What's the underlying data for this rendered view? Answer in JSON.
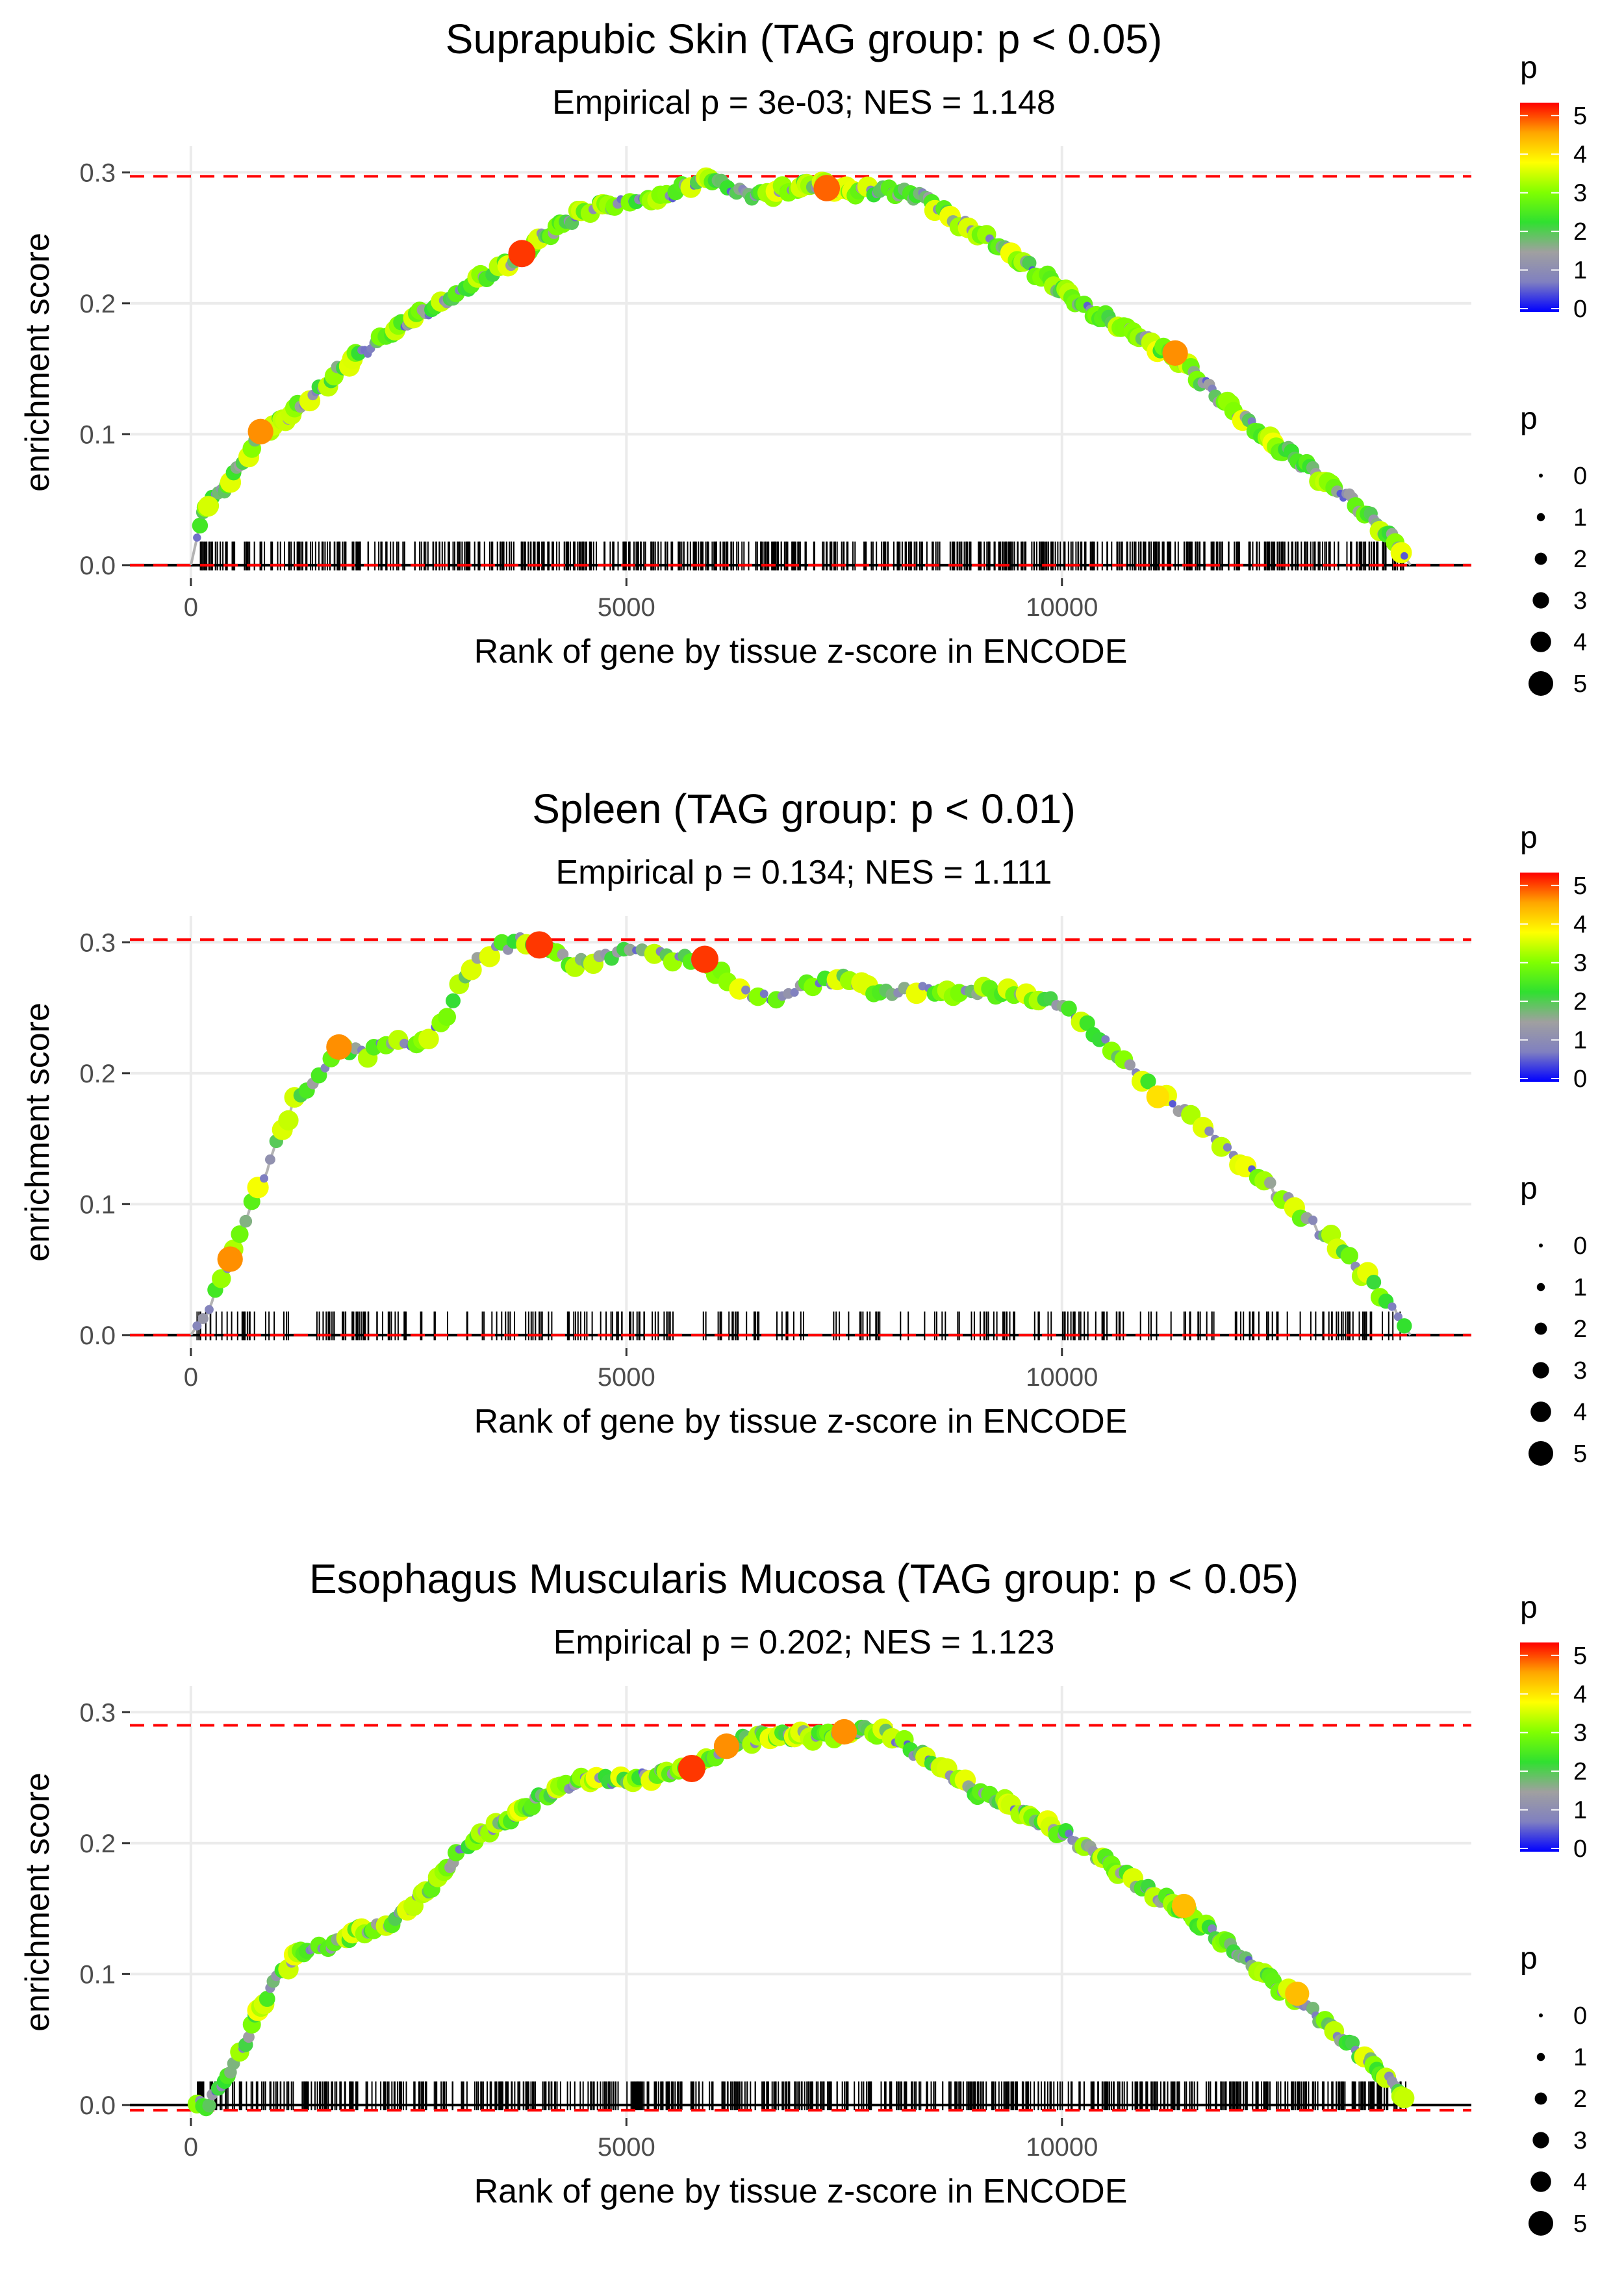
{
  "colors": {
    "grid": "#ebebeb",
    "dashed_line": "#ff0000",
    "curve": "#b3b3b3",
    "axis_text": "#4d4d4d",
    "gradient": [
      "#0000ff",
      "#8080c0",
      "#a0a0a0",
      "#30e030",
      "#80ff00",
      "#ffff00",
      "#ffa500",
      "#ff0000"
    ]
  },
  "chart_data": [
    {
      "type": "line",
      "title": "Suprapubic Skin (TAG group: p < 0.05)",
      "subtitle": "Empirical p = 3e-03; NES = 1.148",
      "xlabel": "Rank of gene by tissue z-score in ENCODE",
      "ylabel": "enrichment score",
      "xlim": [
        -700,
        14700
      ],
      "ylim": [
        -0.01,
        0.32
      ],
      "x_ticks": [
        0,
        5000,
        10000
      ],
      "x_tick_labels": [
        "0",
        "5000",
        "10000"
      ],
      "y_ticks": [
        0.0,
        0.1,
        0.2,
        0.3
      ],
      "y_tick_labels": [
        "0.0",
        "0.1",
        "0.2",
        "0.3"
      ],
      "max_es": 0.297,
      "min_es": 0.0,
      "series_curve": {
        "x": [
          0,
          150,
          400,
          800,
          1300,
          1800,
          2300,
          2800,
          3300,
          3800,
          4200,
          4600,
          5000,
          5400,
          5900,
          6400,
          6800,
          7200,
          7600,
          8000,
          8400,
          8800,
          9300,
          9800,
          10300,
          10800,
          11300,
          11800,
          12300,
          12800,
          13300,
          13800,
          14000
        ],
        "y": [
          0.0,
          0.045,
          0.06,
          0.1,
          0.123,
          0.155,
          0.178,
          0.198,
          0.218,
          0.238,
          0.258,
          0.273,
          0.278,
          0.28,
          0.297,
          0.283,
          0.286,
          0.29,
          0.286,
          0.286,
          0.282,
          0.262,
          0.243,
          0.22,
          0.195,
          0.178,
          0.16,
          0.128,
          0.1,
          0.076,
          0.05,
          0.02,
          0.0
        ]
      },
      "highlight_points": [
        {
          "x": 800,
          "y": 0.102,
          "p": 4.6
        },
        {
          "x": 3800,
          "y": 0.238,
          "p": 5
        },
        {
          "x": 7300,
          "y": 0.288,
          "p": 4.8
        },
        {
          "x": 11300,
          "y": 0.162,
          "p": 4.6
        },
        {
          "x": 200,
          "y": 0.045,
          "p": 3.5
        }
      ],
      "gene_tick_density": "dense",
      "legend": {
        "color_title": "p",
        "color_ticks": [
          "0",
          "1",
          "2",
          "3",
          "4",
          "5"
        ],
        "size_title": "p",
        "size_labels": [
          "0",
          "1",
          "2",
          "3",
          "4",
          "5"
        ]
      }
    },
    {
      "type": "line",
      "title": "Spleen (TAG group: p < 0.01)",
      "subtitle": "Empirical p = 0.134; NES = 1.111",
      "xlabel": "Rank of gene by tissue z-score in ENCODE",
      "ylabel": "enrichment score",
      "xlim": [
        -700,
        14700
      ],
      "ylim": [
        -0.01,
        0.32
      ],
      "x_ticks": [
        0,
        5000,
        10000
      ],
      "x_tick_labels": [
        "0",
        "5000",
        "10000"
      ],
      "y_ticks": [
        0.0,
        0.1,
        0.2,
        0.3
      ],
      "y_tick_labels": [
        "0.0",
        "0.1",
        "0.2",
        "0.3"
      ],
      "max_es": 0.302,
      "min_es": 0.0,
      "series_curve": {
        "x": [
          0,
          200,
          450,
          700,
          950,
          1200,
          1450,
          1700,
          2000,
          2300,
          2600,
          2900,
          3200,
          3500,
          3800,
          4100,
          4400,
          4700,
          5000,
          5400,
          5900,
          6300,
          6700,
          7100,
          7500,
          7900,
          8300,
          8700,
          9100,
          9500,
          9900,
          10300,
          10700,
          11100,
          11500,
          11900,
          12300,
          12700,
          13100,
          13500,
          13800,
          14000
        ],
        "y": [
          0.0,
          0.02,
          0.058,
          0.1,
          0.14,
          0.18,
          0.195,
          0.22,
          0.215,
          0.225,
          0.22,
          0.24,
          0.28,
          0.295,
          0.302,
          0.298,
          0.282,
          0.288,
          0.295,
          0.29,
          0.285,
          0.263,
          0.255,
          0.268,
          0.272,
          0.262,
          0.265,
          0.262,
          0.263,
          0.26,
          0.255,
          0.235,
          0.21,
          0.185,
          0.165,
          0.14,
          0.118,
          0.095,
          0.072,
          0.045,
          0.02,
          0.0
        ]
      },
      "highlight_points": [
        {
          "x": 450,
          "y": 0.058,
          "p": 4.6
        },
        {
          "x": 1700,
          "y": 0.22,
          "p": 4.6
        },
        {
          "x": 4000,
          "y": 0.298,
          "p": 5
        },
        {
          "x": 5900,
          "y": 0.287,
          "p": 5
        },
        {
          "x": 11100,
          "y": 0.182,
          "p": 4.0
        }
      ],
      "gene_tick_density": "sparse",
      "legend": {
        "color_title": "p",
        "color_ticks": [
          "0",
          "1",
          "2",
          "3",
          "4",
          "5"
        ],
        "size_title": "p",
        "size_labels": [
          "0",
          "1",
          "2",
          "3",
          "4",
          "5"
        ]
      }
    },
    {
      "type": "line",
      "title": "Esophagus Muscularis Mucosa (TAG group: p < 0.05)",
      "subtitle": "Empirical p = 0.202; NES = 1.123",
      "xlabel": "Rank of gene by tissue z-score in ENCODE",
      "ylabel": "enrichment score",
      "xlim": [
        -700,
        14700
      ],
      "ylim": [
        -0.01,
        0.32
      ],
      "x_ticks": [
        0,
        5000,
        10000
      ],
      "x_tick_labels": [
        "0",
        "5000",
        "10000"
      ],
      "y_ticks": [
        0.0,
        0.1,
        0.2,
        0.3
      ],
      "y_tick_labels": [
        "0.0",
        "0.1",
        "0.2",
        "0.3"
      ],
      "max_es": 0.29,
      "min_es": -0.004,
      "series_curve": {
        "x": [
          0,
          200,
          400,
          600,
          800,
          1000,
          1300,
          1600,
          1900,
          2200,
          2500,
          2800,
          3100,
          3400,
          3700,
          4000,
          4300,
          4600,
          5000,
          5400,
          5800,
          6200,
          6600,
          7000,
          7400,
          7800,
          8200,
          8600,
          9000,
          9400,
          9800,
          10200,
          10600,
          11000,
          11400,
          11800,
          12200,
          12600,
          13000,
          13400,
          13800,
          14000
        ],
        "y": [
          0.0,
          0.002,
          0.02,
          0.045,
          0.075,
          0.1,
          0.118,
          0.122,
          0.132,
          0.135,
          0.15,
          0.17,
          0.195,
          0.21,
          0.22,
          0.235,
          0.245,
          0.25,
          0.248,
          0.252,
          0.258,
          0.275,
          0.282,
          0.282,
          0.283,
          0.288,
          0.275,
          0.258,
          0.24,
          0.228,
          0.215,
          0.2,
          0.182,
          0.163,
          0.148,
          0.128,
          0.105,
          0.085,
          0.065,
          0.04,
          0.015,
          0.0
        ]
      },
      "highlight_points": [
        {
          "x": 5750,
          "y": 0.257,
          "p": 5
        },
        {
          "x": 6150,
          "y": 0.274,
          "p": 4.6
        },
        {
          "x": 7500,
          "y": 0.285,
          "p": 4.6
        },
        {
          "x": 11400,
          "y": 0.152,
          "p": 4.3
        },
        {
          "x": 12700,
          "y": 0.085,
          "p": 4.3
        }
      ],
      "gene_tick_density": "dense",
      "legend": {
        "color_title": "p",
        "color_ticks": [
          "0",
          "1",
          "2",
          "3",
          "4",
          "5"
        ],
        "size_title": "p",
        "size_labels": [
          "0",
          "1",
          "2",
          "3",
          "4",
          "5"
        ]
      }
    }
  ]
}
